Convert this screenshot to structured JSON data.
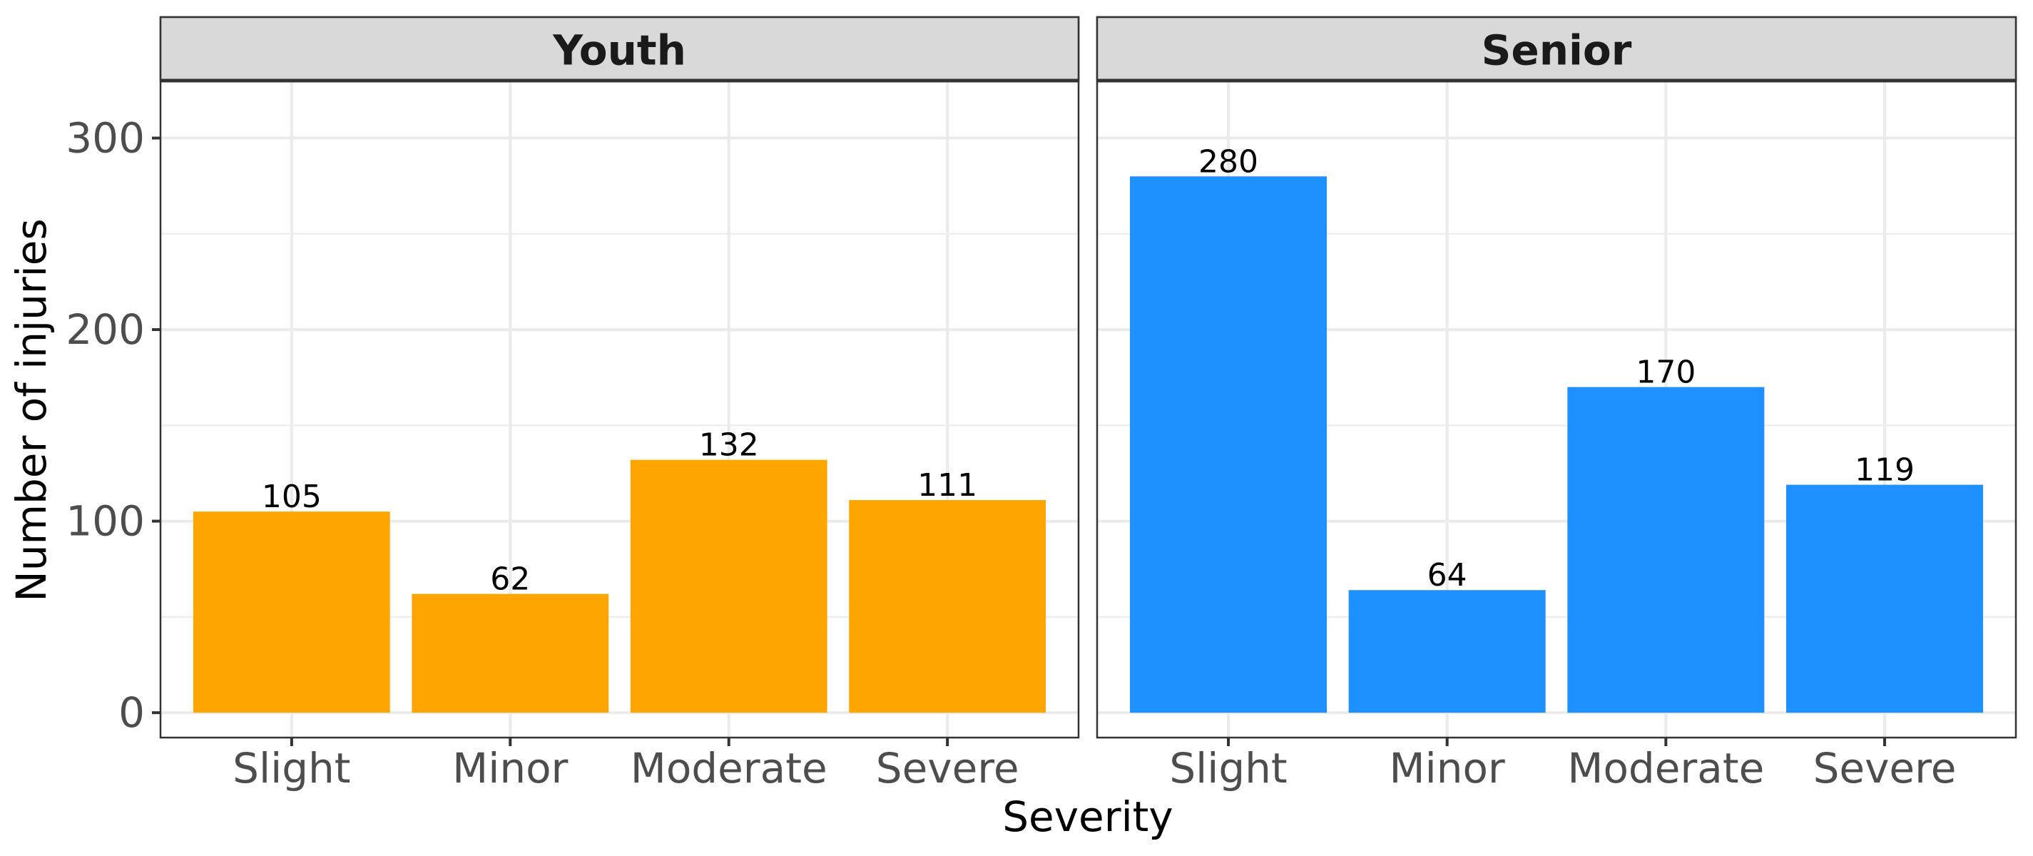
{
  "chart_data": {
    "type": "bar",
    "facets": [
      {
        "name": "Youth",
        "color": "#FFA500",
        "categories": [
          "Slight",
          "Minor",
          "Moderate",
          "Severe"
        ],
        "values": [
          105,
          62,
          132,
          111
        ]
      },
      {
        "name": "Senior",
        "color": "#1E90FF",
        "categories": [
          "Slight",
          "Minor",
          "Moderate",
          "Severe"
        ],
        "values": [
          280,
          64,
          170,
          119
        ]
      }
    ],
    "xlabel": "Severity",
    "ylabel": "Number of injuries",
    "ylim": [
      -13,
      330
    ],
    "yticks": [
      0,
      100,
      200,
      300
    ],
    "grid": true,
    "legend": "none",
    "colors": {
      "strip_background": "#D9D9D9",
      "panel_border": "#333333",
      "grid": "#EBEBEB"
    }
  }
}
